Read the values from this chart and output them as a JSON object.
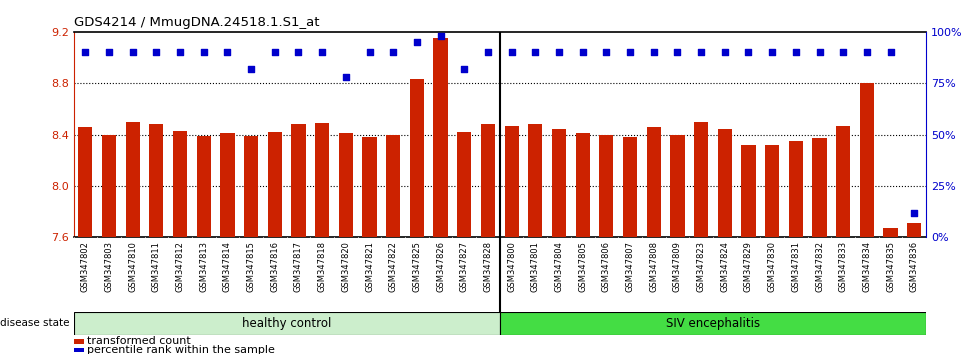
{
  "title": "GDS4214 / MmugDNA.24518.1.S1_at",
  "samples": [
    "GSM347802",
    "GSM347803",
    "GSM347810",
    "GSM347811",
    "GSM347812",
    "GSM347813",
    "GSM347814",
    "GSM347815",
    "GSM347816",
    "GSM347817",
    "GSM347818",
    "GSM347820",
    "GSM347821",
    "GSM347822",
    "GSM347825",
    "GSM347826",
    "GSM347827",
    "GSM347828",
    "GSM347800",
    "GSM347801",
    "GSM347804",
    "GSM347805",
    "GSM347806",
    "GSM347807",
    "GSM347808",
    "GSM347809",
    "GSM347823",
    "GSM347824",
    "GSM347829",
    "GSM347830",
    "GSM347831",
    "GSM347832",
    "GSM347833",
    "GSM347834",
    "GSM347835",
    "GSM347836"
  ],
  "bar_values": [
    8.46,
    8.4,
    8.5,
    8.48,
    8.43,
    8.39,
    8.41,
    8.39,
    8.42,
    8.48,
    8.49,
    8.41,
    8.38,
    8.4,
    8.83,
    9.15,
    8.42,
    8.48,
    8.47,
    8.48,
    8.44,
    8.41,
    8.4,
    8.38,
    8.46,
    8.4,
    8.5,
    8.44,
    8.32,
    8.32,
    8.35,
    8.37,
    8.47,
    8.8,
    7.67,
    7.71
  ],
  "percentile_values": [
    90,
    90,
    90,
    90,
    90,
    90,
    90,
    82,
    90,
    90,
    90,
    78,
    90,
    90,
    95,
    98,
    82,
    90,
    90,
    90,
    90,
    90,
    90,
    90,
    90,
    90,
    90,
    90,
    90,
    90,
    90,
    90,
    90,
    90,
    90,
    12
  ],
  "healthy_control_count": 18,
  "ylim_left": [
    7.6,
    9.2
  ],
  "ylim_right": [
    0,
    100
  ],
  "yticks_left": [
    7.6,
    8.0,
    8.4,
    8.8,
    9.2
  ],
  "yticks_right": [
    0,
    25,
    50,
    75,
    100
  ],
  "bar_color": "#cc2200",
  "dot_color": "#0000cc",
  "healthy_color": "#cceecc",
  "siv_color": "#44dd44",
  "healthy_label": "healthy control",
  "siv_label": "SIV encephalitis",
  "disease_state_label": "disease state",
  "legend_bar_label": "transformed count",
  "legend_dot_label": "percentile rank within the sample",
  "xtick_bg_color": "#dddddd"
}
